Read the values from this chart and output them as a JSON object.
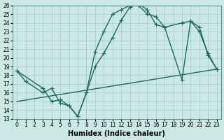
{
  "xlabel": "Humidex (Indice chaleur)",
  "bg_color": "#cce8e4",
  "grid_color": "#99cccc",
  "line_color": "#1a6b5a",
  "xlim": [
    -0.5,
    23.5
  ],
  "ylim": [
    13,
    26
  ],
  "xticks": [
    0,
    1,
    2,
    3,
    4,
    5,
    6,
    7,
    8,
    9,
    10,
    11,
    12,
    13,
    14,
    15,
    16,
    17,
    18,
    19,
    20,
    21,
    22,
    23
  ],
  "yticks": [
    13,
    14,
    15,
    16,
    17,
    18,
    19,
    20,
    21,
    22,
    23,
    24,
    25,
    26
  ],
  "line1_x": [
    0,
    1,
    3,
    4,
    5,
    6,
    7,
    8,
    9,
    10,
    11,
    12,
    13,
    14,
    15,
    16,
    17,
    19,
    20,
    21,
    22,
    23
  ],
  "line1_y": [
    18.5,
    17.3,
    16.0,
    16.5,
    14.8,
    14.5,
    13.3,
    16.0,
    20.7,
    23.0,
    25.0,
    25.5,
    26.0,
    26.0,
    25.0,
    24.7,
    23.5,
    24.0,
    24.2,
    23.0,
    20.5,
    18.7
  ],
  "line2_x": [
    0,
    3,
    4,
    5,
    6,
    7,
    8,
    9,
    10,
    11,
    12,
    13,
    14,
    15,
    16,
    17,
    19,
    20,
    21,
    22,
    23
  ],
  "line2_y": [
    18.5,
    16.5,
    15.0,
    15.2,
    14.5,
    13.3,
    16.0,
    19.0,
    20.5,
    22.3,
    24.3,
    25.8,
    26.2,
    25.5,
    23.8,
    23.5,
    17.5,
    24.2,
    23.5,
    20.3,
    18.7
  ],
  "line3_x": [
    0,
    23
  ],
  "line3_y": [
    15.0,
    18.7
  ],
  "tick_fontsize": 5.5,
  "axis_fontsize": 7,
  "linewidth": 1.0
}
